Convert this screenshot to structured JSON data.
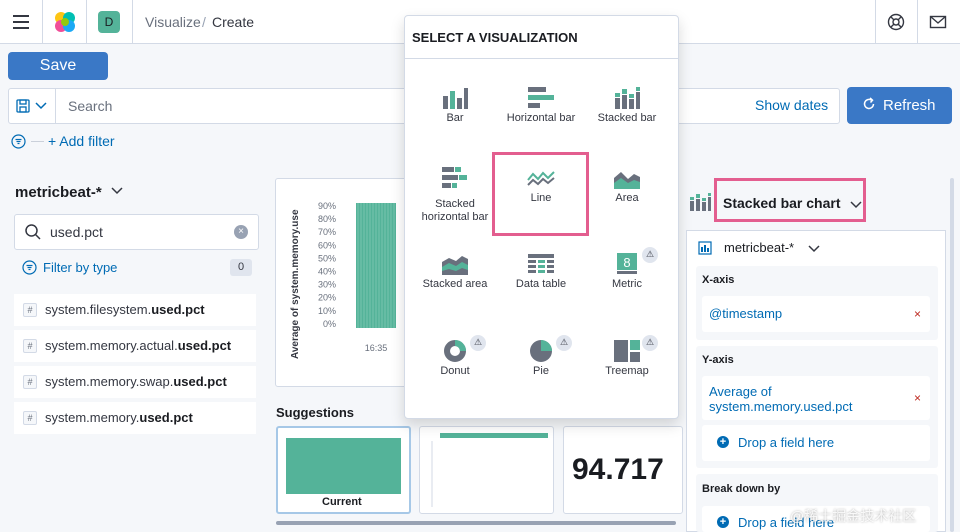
{
  "header": {
    "space_letter": "D",
    "breadcrumbs": [
      "Visualize",
      "Create"
    ],
    "breadcrumb_separator": "/"
  },
  "toolbar": {
    "save_label": "Save"
  },
  "query": {
    "placeholder": "Search",
    "show_dates": "Show dates",
    "refresh_label": "Refresh"
  },
  "filters": {
    "add_filter": "+ Add filter"
  },
  "sidebar": {
    "index_pattern": "metricbeat-*",
    "field_search_value": "used.pct",
    "filter_by_type": "Filter by type",
    "filter_count": "0",
    "fields": [
      {
        "prefix": "system.filesystem.",
        "match": "used.pct"
      },
      {
        "prefix": "system.memory.actual.",
        "match": "used.pct"
      },
      {
        "prefix": "system.memory.swap.",
        "match": "used.pct"
      },
      {
        "prefix": "system.memory.",
        "match": "used.pct"
      }
    ]
  },
  "chart": {
    "ylabel": "Average of system.memory.use",
    "yticks": [
      "90%",
      "80%",
      "70%",
      "60%",
      "50%",
      "40%",
      "30%",
      "20%",
      "10%",
      "0%"
    ],
    "xtick": "16:35"
  },
  "suggestions": {
    "title": "Suggestions",
    "current_label": "Current",
    "metric_value": "94.717"
  },
  "popover": {
    "title": "SELECT A VISUALIZATION",
    "items": [
      {
        "label": "Bar",
        "icon": "bar-chart-icon",
        "beta": false
      },
      {
        "label": "Horizontal bar",
        "icon": "horizontal-bar-icon",
        "beta": false
      },
      {
        "label": "Stacked bar",
        "icon": "stacked-bar-icon",
        "beta": false
      },
      {
        "label": "Stacked horizontal bar",
        "icon": "stacked-horizontal-bar-icon",
        "beta": false
      },
      {
        "label": "Line",
        "icon": "line-chart-icon",
        "beta": false
      },
      {
        "label": "Area",
        "icon": "area-chart-icon",
        "beta": false
      },
      {
        "label": "Stacked area",
        "icon": "stacked-area-icon",
        "beta": false
      },
      {
        "label": "Data table",
        "icon": "data-table-icon",
        "beta": false
      },
      {
        "label": "Metric",
        "icon": "metric-icon",
        "beta": true
      },
      {
        "label": "Donut",
        "icon": "donut-icon",
        "beta": true
      },
      {
        "label": "Pie",
        "icon": "pie-icon",
        "beta": true
      },
      {
        "label": "Treemap",
        "icon": "treemap-icon",
        "beta": true
      }
    ],
    "beta_glyph": "⚠",
    "metric_glyph": "8"
  },
  "config": {
    "chart_type": "Stacked bar chart",
    "index_pattern": "metricbeat-*",
    "x_axis_title": "X-axis",
    "x_axis_field": "@timestamp",
    "y_axis_title": "Y-axis",
    "y_axis_field": "Average of system.memory.used.pct",
    "drop_label": "Drop a field here",
    "breakdown_title": "Break down by",
    "remove_glyph": "×"
  },
  "watermark": "@稀土掘金技术社区",
  "colors": {
    "primary": "#3a78c6",
    "link": "#006bb4",
    "highlight": "#e35e8f",
    "chart_green": "#54b399",
    "icon_gray": "#69707d"
  }
}
